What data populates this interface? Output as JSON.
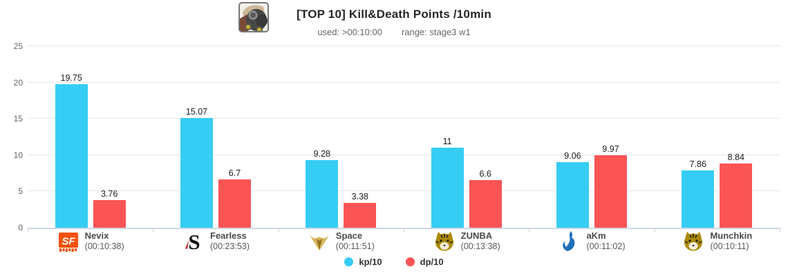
{
  "header": {
    "icon": "roadhog-hero-icon",
    "title": "[TOP 10] Kill&Death Points /10min",
    "used": "used: >00:10:00",
    "range": "range: stage3 w1"
  },
  "chart_data": {
    "type": "bar",
    "title": "[TOP 10] Kill&Death Points /10min",
    "subtitle": "used: >00:10:00   range: stage3 w1",
    "categories": [
      "Nevix",
      "Fearless",
      "Space",
      "ZUNBA",
      "aKm",
      "Munchkin"
    ],
    "category_sublabels": [
      "(00:10:38)",
      "(00:23:53)",
      "(00:11:51)",
      "(00:13:38)",
      "(00:11:02)",
      "(00:10:11)"
    ],
    "category_team_logos": [
      "sf-shock-logo",
      "shanghai-dragons-logo",
      "la-valiant-logo",
      "seoul-dynasty-logo",
      "dallas-fuel-logo",
      "seoul-dynasty-logo"
    ],
    "series": [
      {
        "name": "kp/10",
        "color": "#36cdf5",
        "values": [
          19.75,
          15.07,
          9.28,
          11,
          9.06,
          7.86
        ]
      },
      {
        "name": "dp/10",
        "color": "#fa5455",
        "values": [
          3.76,
          6.7,
          3.38,
          6.6,
          9.97,
          8.84
        ]
      }
    ],
    "xlabel": "",
    "ylabel": "",
    "ylim": [
      0,
      25
    ],
    "yticks": [
      0,
      5,
      10,
      15,
      20,
      25
    ],
    "grid": "horizontal",
    "legend_position": "bottom"
  },
  "colors": {
    "axis_line": "#ccd7e2",
    "gridline": "#e8e8e8",
    "kp_bar": "#36cdf5",
    "dp_bar": "#fa5455"
  }
}
